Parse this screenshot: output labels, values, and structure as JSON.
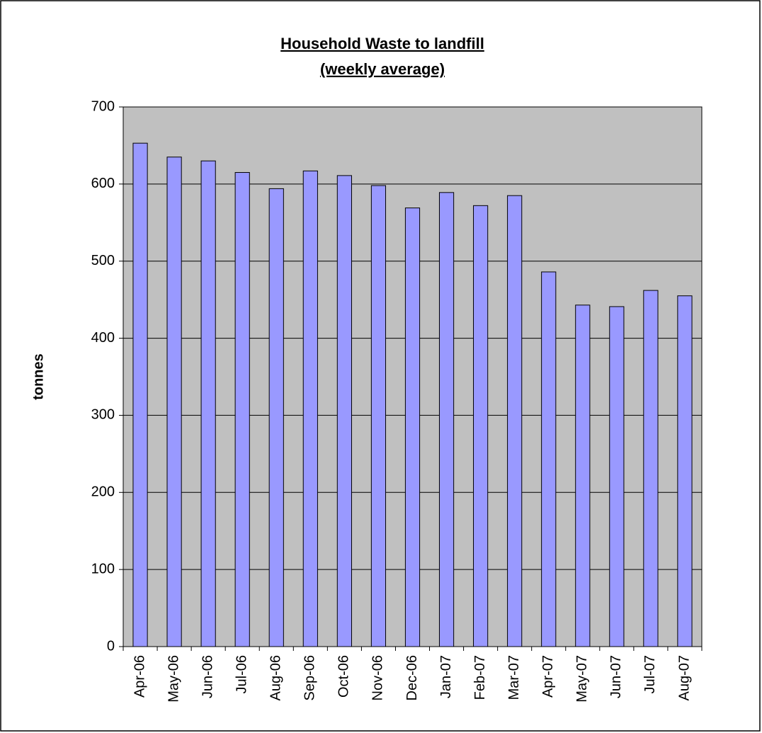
{
  "chart_data": {
    "type": "bar",
    "title": "Household Waste to landfill",
    "subtitle": "(weekly average)",
    "y_label": "tonnes",
    "categories": [
      "Apr-06",
      "May-06",
      "Jun-06",
      "Jul-06",
      "Aug-06",
      "Sep-06",
      "Oct-06",
      "Nov-06",
      "Dec-06",
      "Jan-07",
      "Feb-07",
      "Mar-07",
      "Apr-07",
      "May-07",
      "Jun-07",
      "Jul-07",
      "Aug-07"
    ],
    "values": [
      653,
      635,
      630,
      615,
      594,
      617,
      611,
      598,
      569,
      589,
      572,
      585,
      486,
      443,
      441,
      462,
      455
    ],
    "color": "#9999ff",
    "ylim": [
      0,
      700
    ],
    "yticks": [
      0,
      100,
      200,
      300,
      400,
      500,
      600,
      700
    ],
    "grid": true
  }
}
